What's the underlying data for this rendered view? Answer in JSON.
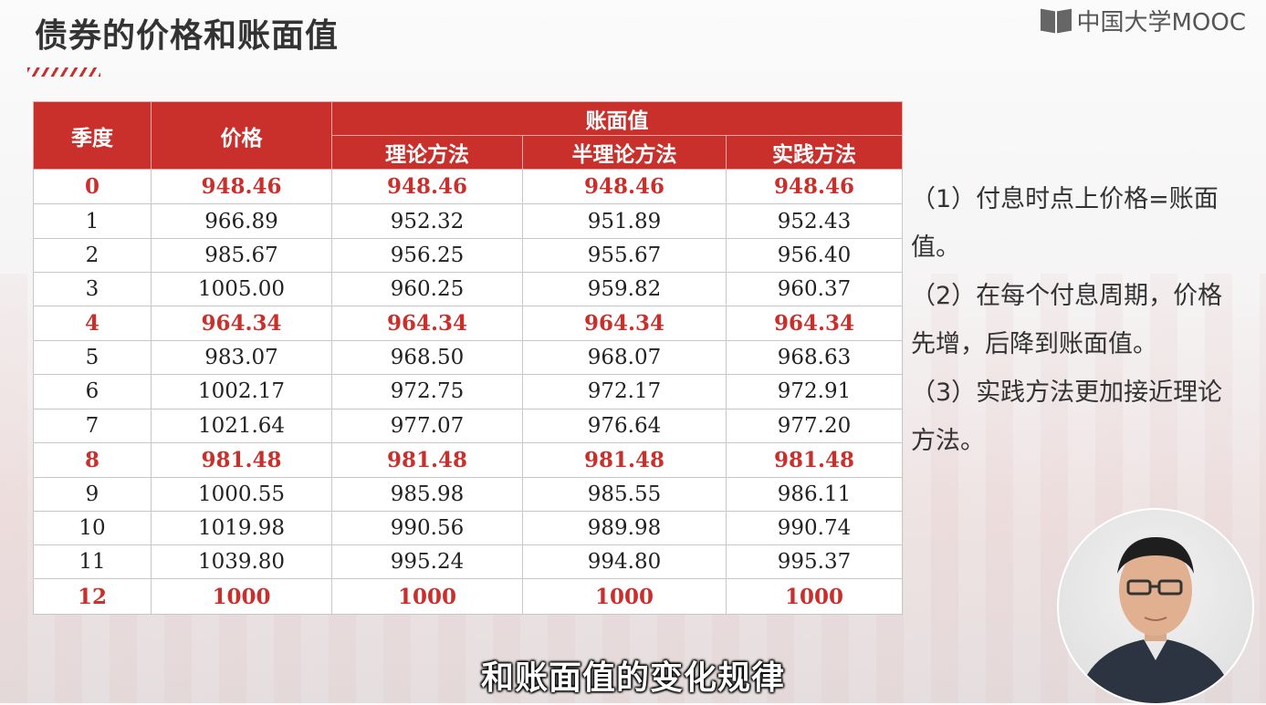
{
  "header": {
    "title": "债券的价格和账面值",
    "logo_text": "中国大学MOOC"
  },
  "table": {
    "col_quarter": "季度",
    "col_price": "价格",
    "group_book_value": "账面值",
    "col_theory": "理论方法",
    "col_semi": "半理论方法",
    "col_practice": "实践方法",
    "rows": [
      {
        "q": "0",
        "price": "948.46",
        "theory": "948.46",
        "semi": "948.46",
        "practice": "948.46",
        "highlight": true
      },
      {
        "q": "1",
        "price": "966.89",
        "theory": "952.32",
        "semi": "951.89",
        "practice": "952.43",
        "highlight": false
      },
      {
        "q": "2",
        "price": "985.67",
        "theory": "956.25",
        "semi": "955.67",
        "practice": "956.40",
        "highlight": false
      },
      {
        "q": "3",
        "price": "1005.00",
        "theory": "960.25",
        "semi": "959.82",
        "practice": "960.37",
        "highlight": false
      },
      {
        "q": "4",
        "price": "964.34",
        "theory": "964.34",
        "semi": "964.34",
        "practice": "964.34",
        "highlight": true
      },
      {
        "q": "5",
        "price": "983.07",
        "theory": "968.50",
        "semi": "968.07",
        "practice": "968.63",
        "highlight": false
      },
      {
        "q": "6",
        "price": "1002.17",
        "theory": "972.75",
        "semi": "972.17",
        "practice": "972.91",
        "highlight": false
      },
      {
        "q": "7",
        "price": "1021.64",
        "theory": "977.07",
        "semi": "976.64",
        "practice": "977.20",
        "highlight": false
      },
      {
        "q": "8",
        "price": "981.48",
        "theory": "981.48",
        "semi": "981.48",
        "practice": "981.48",
        "highlight": true
      },
      {
        "q": "9",
        "price": "1000.55",
        "theory": "985.98",
        "semi": "985.55",
        "practice": "986.11",
        "highlight": false
      },
      {
        "q": "10",
        "price": "1019.98",
        "theory": "990.56",
        "semi": "989.98",
        "practice": "990.74",
        "highlight": false
      },
      {
        "q": "11",
        "price": "1039.80",
        "theory": "995.24",
        "semi": "994.80",
        "practice": "995.37",
        "highlight": false
      },
      {
        "q": "12",
        "price": "1000",
        "theory": "1000",
        "semi": "1000",
        "practice": "1000",
        "highlight": true
      }
    ]
  },
  "notes": [
    "（1）付息时点上价格=账面值。",
    "（2）在每个付息周期，价格先增，后降到账面值。",
    "（3）实践方法更加接近理论方法。"
  ],
  "subtitle": "和账面值的变化规律",
  "colors": {
    "accent": "#c9302c",
    "header_text": "#ffffff"
  }
}
